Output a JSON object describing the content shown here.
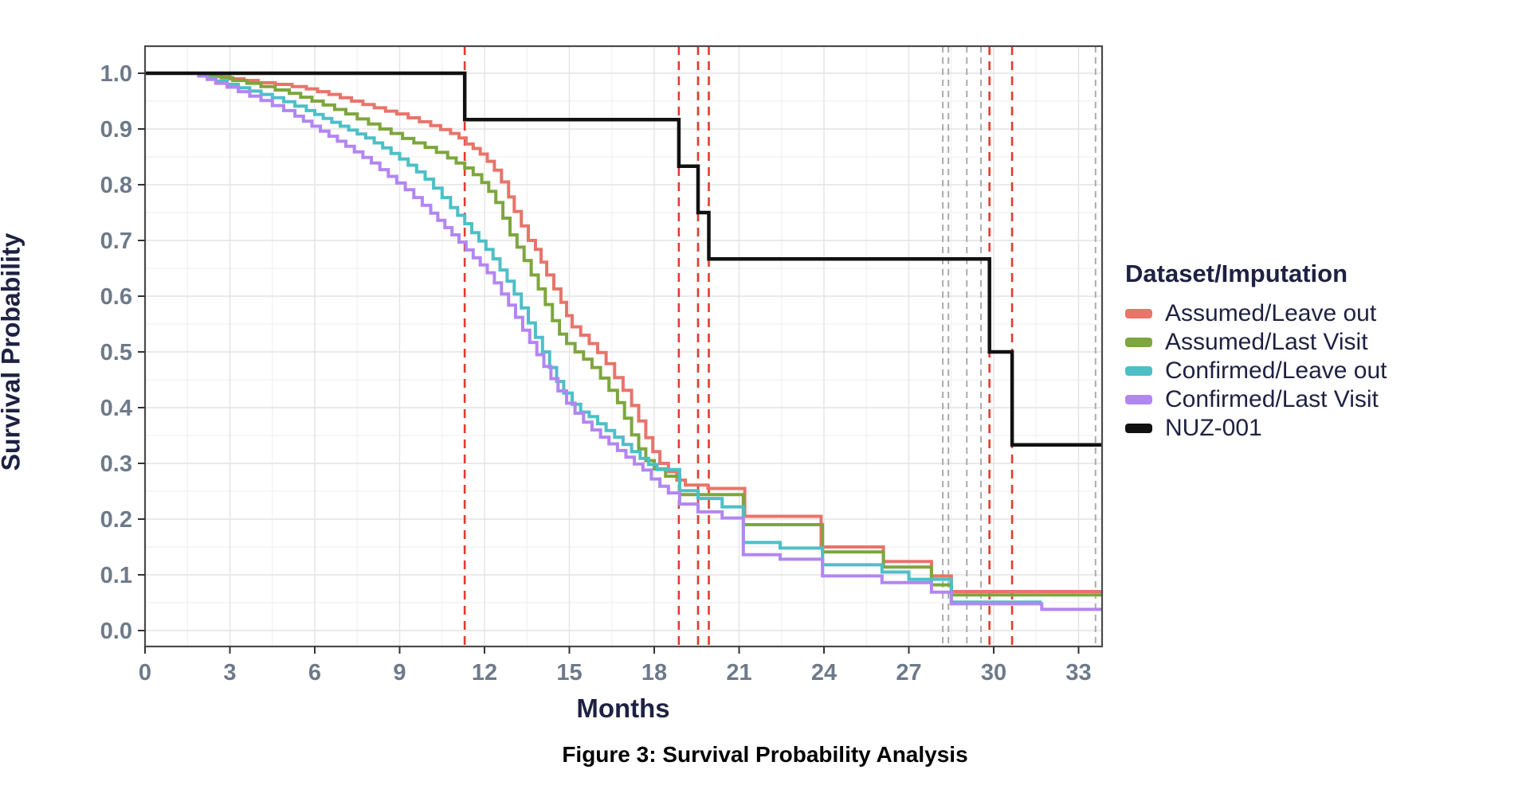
{
  "figure": {
    "caption": "Figure 3: Survival Probability Analysis"
  },
  "legend": {
    "title": "Dataset/Imputation",
    "entries": [
      {
        "label": "Assumed/Leave out",
        "color": "#e8746a"
      },
      {
        "label": "Assumed/Last Visit",
        "color": "#7da63d"
      },
      {
        "label": "Confirmed/Leave out",
        "color": "#4dbfc7"
      },
      {
        "label": "Confirmed/Last Visit",
        "color": "#b286f2"
      },
      {
        "label": "NUZ-001",
        "color": "#111111"
      }
    ]
  },
  "chart_data": {
    "type": "line",
    "subtype": "kaplan-meier-step",
    "title": "Figure 3: Survival Probability Analysis",
    "xlabel": "Months",
    "ylabel": "Survival Probability",
    "xlim": [
      0,
      33.88
    ],
    "ylim": [
      0.0,
      1.0
    ],
    "x_ticks": [
      0,
      3,
      6,
      9,
      12,
      15,
      18,
      21,
      24,
      27,
      30,
      33
    ],
    "y_ticks": [
      {
        "value": 1.0,
        "label": "1.0"
      },
      {
        "value": 0.9,
        "label": "0.9"
      },
      {
        "value": 0.8,
        "label": "0.8"
      },
      {
        "value": 0.7,
        "label": "0.7"
      },
      {
        "value": 0.6,
        "label": "0.6"
      },
      {
        "value": 0.5,
        "label": "0.5"
      },
      {
        "value": 0.4,
        "label": "0.4"
      },
      {
        "value": 0.3,
        "label": "0.3"
      },
      {
        "value": 0.2,
        "label": "0.2"
      },
      {
        "value": 0.1,
        "label": "0.1"
      },
      {
        "value": 0.0,
        "label": "0.0"
      }
    ],
    "grid": {
      "major_x_every": 3,
      "minor_x_every": 1.5,
      "major_y_every": 0.1,
      "minor_y_every": 0.05,
      "legend_position": "right"
    },
    "colors": {
      "grid_major": "#e3e3e3",
      "grid_minor": "#f1f1f1",
      "panel_border": "#4a4a4a",
      "tick_text": "#6e7a8a",
      "axis_title_text": "#1e2142",
      "event_line": "#e23b2e",
      "censor_line": "#ababab"
    },
    "event_lines": {
      "style": "dashed",
      "color": "#e23b2e",
      "months": [
        11.3,
        18.87,
        19.55,
        19.93,
        29.85,
        30.65
      ]
    },
    "censor_lines": {
      "style": "dashed",
      "color": "#ababab",
      "months": [
        28.2,
        28.4,
        29.05,
        29.55,
        33.6
      ]
    },
    "series": [
      {
        "name": "Assumed/Leave out",
        "color": "#e8746a",
        "width": 4,
        "start_value": 1.0,
        "end_x": 33.88,
        "steps": [
          [
            2.3,
            0.997
          ],
          [
            2.6,
            0.994
          ],
          [
            3.0,
            0.99
          ],
          [
            3.5,
            0.987
          ],
          [
            4.0,
            0.983
          ],
          [
            4.6,
            0.98
          ],
          [
            5.2,
            0.976
          ],
          [
            5.7,
            0.972
          ],
          [
            6.1,
            0.967
          ],
          [
            6.5,
            0.962
          ],
          [
            6.9,
            0.956
          ],
          [
            7.3,
            0.95
          ],
          [
            7.7,
            0.944
          ],
          [
            8.1,
            0.938
          ],
          [
            8.5,
            0.932
          ],
          [
            8.9,
            0.927
          ],
          [
            9.3,
            0.92
          ],
          [
            9.7,
            0.913
          ],
          [
            10.1,
            0.906
          ],
          [
            10.45,
            0.899
          ],
          [
            10.8,
            0.892
          ],
          [
            11.1,
            0.884
          ],
          [
            11.35,
            0.873
          ],
          [
            11.6,
            0.865
          ],
          [
            11.85,
            0.855
          ],
          [
            12.1,
            0.842
          ],
          [
            12.35,
            0.826
          ],
          [
            12.6,
            0.805
          ],
          [
            12.85,
            0.778
          ],
          [
            13.05,
            0.752
          ],
          [
            13.3,
            0.726
          ],
          [
            13.55,
            0.7
          ],
          [
            13.8,
            0.684
          ],
          [
            14.0,
            0.661
          ],
          [
            14.2,
            0.638
          ],
          [
            14.45,
            0.613
          ],
          [
            14.7,
            0.589
          ],
          [
            14.9,
            0.565
          ],
          [
            15.1,
            0.545
          ],
          [
            15.4,
            0.53
          ],
          [
            15.7,
            0.515
          ],
          [
            16.0,
            0.499
          ],
          [
            16.3,
            0.479
          ],
          [
            16.6,
            0.454
          ],
          [
            16.9,
            0.431
          ],
          [
            17.2,
            0.404
          ],
          [
            17.45,
            0.376
          ],
          [
            17.7,
            0.346
          ],
          [
            17.95,
            0.321
          ],
          [
            18.2,
            0.3
          ],
          [
            18.5,
            0.285
          ],
          [
            18.8,
            0.27
          ],
          [
            19.1,
            0.261
          ],
          [
            19.9,
            0.255
          ],
          [
            21.2,
            0.205
          ],
          [
            23.9,
            0.15
          ],
          [
            26.1,
            0.124
          ],
          [
            27.8,
            0.098
          ],
          [
            28.5,
            0.07
          ]
        ]
      },
      {
        "name": "Assumed/Last Visit",
        "color": "#7da63d",
        "width": 4,
        "start_value": 1.0,
        "end_x": 33.88,
        "steps": [
          [
            2.3,
            0.996
          ],
          [
            2.7,
            0.992
          ],
          [
            3.1,
            0.987
          ],
          [
            3.6,
            0.982
          ],
          [
            4.1,
            0.976
          ],
          [
            4.6,
            0.97
          ],
          [
            5.1,
            0.964
          ],
          [
            5.5,
            0.957
          ],
          [
            5.9,
            0.95
          ],
          [
            6.3,
            0.943
          ],
          [
            6.7,
            0.935
          ],
          [
            7.1,
            0.927
          ],
          [
            7.5,
            0.918
          ],
          [
            7.9,
            0.909
          ],
          [
            8.3,
            0.9
          ],
          [
            8.7,
            0.892
          ],
          [
            9.1,
            0.883
          ],
          [
            9.5,
            0.875
          ],
          [
            9.9,
            0.867
          ],
          [
            10.3,
            0.858
          ],
          [
            10.7,
            0.848
          ],
          [
            11.0,
            0.839
          ],
          [
            11.3,
            0.83
          ],
          [
            11.6,
            0.818
          ],
          [
            11.9,
            0.804
          ],
          [
            12.15,
            0.788
          ],
          [
            12.4,
            0.768
          ],
          [
            12.65,
            0.74
          ],
          [
            12.9,
            0.71
          ],
          [
            13.15,
            0.688
          ],
          [
            13.4,
            0.664
          ],
          [
            13.65,
            0.638
          ],
          [
            13.9,
            0.613
          ],
          [
            14.15,
            0.585
          ],
          [
            14.4,
            0.556
          ],
          [
            14.65,
            0.532
          ],
          [
            14.9,
            0.515
          ],
          [
            15.2,
            0.5
          ],
          [
            15.5,
            0.487
          ],
          [
            15.8,
            0.472
          ],
          [
            16.1,
            0.453
          ],
          [
            16.4,
            0.431
          ],
          [
            16.7,
            0.409
          ],
          [
            16.95,
            0.381
          ],
          [
            17.2,
            0.351
          ],
          [
            17.45,
            0.326
          ],
          [
            17.7,
            0.305
          ],
          [
            18.0,
            0.29
          ],
          [
            18.4,
            0.277
          ],
          [
            18.9,
            0.244
          ],
          [
            21.15,
            0.19
          ],
          [
            23.95,
            0.141
          ],
          [
            26.1,
            0.114
          ],
          [
            27.8,
            0.082
          ],
          [
            28.5,
            0.064
          ]
        ]
      },
      {
        "name": "Confirmed/Leave out",
        "color": "#4dbfc7",
        "width": 4,
        "start_value": 1.0,
        "end_x": 31.7,
        "steps": [
          [
            1.9,
            0.996
          ],
          [
            2.2,
            0.991
          ],
          [
            2.5,
            0.986
          ],
          [
            2.9,
            0.98
          ],
          [
            3.3,
            0.974
          ],
          [
            3.7,
            0.968
          ],
          [
            4.1,
            0.962
          ],
          [
            4.5,
            0.956
          ],
          [
            4.9,
            0.949
          ],
          [
            5.3,
            0.941
          ],
          [
            5.7,
            0.933
          ],
          [
            6.0,
            0.926
          ],
          [
            6.3,
            0.919
          ],
          [
            6.6,
            0.912
          ],
          [
            6.9,
            0.905
          ],
          [
            7.2,
            0.898
          ],
          [
            7.5,
            0.891
          ],
          [
            7.8,
            0.884
          ],
          [
            8.1,
            0.875
          ],
          [
            8.4,
            0.866
          ],
          [
            8.7,
            0.856
          ],
          [
            9.0,
            0.846
          ],
          [
            9.3,
            0.835
          ],
          [
            9.6,
            0.823
          ],
          [
            9.9,
            0.81
          ],
          [
            10.2,
            0.794
          ],
          [
            10.5,
            0.777
          ],
          [
            10.8,
            0.759
          ],
          [
            11.05,
            0.745
          ],
          [
            11.3,
            0.73
          ],
          [
            11.55,
            0.714
          ],
          [
            11.8,
            0.699
          ],
          [
            12.05,
            0.684
          ],
          [
            12.3,
            0.667
          ],
          [
            12.55,
            0.647
          ],
          [
            12.8,
            0.627
          ],
          [
            13.05,
            0.604
          ],
          [
            13.3,
            0.579
          ],
          [
            13.55,
            0.552
          ],
          [
            13.8,
            0.526
          ],
          [
            14.05,
            0.5
          ],
          [
            14.3,
            0.472
          ],
          [
            14.55,
            0.447
          ],
          [
            14.8,
            0.426
          ],
          [
            15.1,
            0.406
          ],
          [
            15.4,
            0.392
          ],
          [
            15.7,
            0.384
          ],
          [
            16.0,
            0.371
          ],
          [
            16.3,
            0.359
          ],
          [
            16.6,
            0.347
          ],
          [
            16.9,
            0.334
          ],
          [
            17.2,
            0.321
          ],
          [
            17.5,
            0.309
          ],
          [
            17.8,
            0.298
          ],
          [
            18.1,
            0.289
          ],
          [
            18.9,
            0.251
          ],
          [
            19.55,
            0.237
          ],
          [
            20.4,
            0.222
          ],
          [
            21.15,
            0.158
          ],
          [
            22.45,
            0.148
          ],
          [
            23.95,
            0.118
          ],
          [
            26.05,
            0.105
          ],
          [
            27.0,
            0.092
          ],
          [
            28.5,
            0.051
          ]
        ]
      },
      {
        "name": "Confirmed/Last Visit",
        "color": "#b286f2",
        "width": 4,
        "start_value": 1.0,
        "end_x": 33.88,
        "steps": [
          [
            1.9,
            0.995
          ],
          [
            2.2,
            0.989
          ],
          [
            2.5,
            0.982
          ],
          [
            2.9,
            0.975
          ],
          [
            3.3,
            0.967
          ],
          [
            3.7,
            0.959
          ],
          [
            4.1,
            0.951
          ],
          [
            4.5,
            0.942
          ],
          [
            4.9,
            0.933
          ],
          [
            5.3,
            0.923
          ],
          [
            5.6,
            0.914
          ],
          [
            5.9,
            0.905
          ],
          [
            6.2,
            0.896
          ],
          [
            6.5,
            0.887
          ],
          [
            6.8,
            0.878
          ],
          [
            7.1,
            0.869
          ],
          [
            7.4,
            0.859
          ],
          [
            7.7,
            0.849
          ],
          [
            8.0,
            0.839
          ],
          [
            8.3,
            0.827
          ],
          [
            8.6,
            0.815
          ],
          [
            8.9,
            0.803
          ],
          [
            9.2,
            0.791
          ],
          [
            9.5,
            0.777
          ],
          [
            9.8,
            0.763
          ],
          [
            10.1,
            0.749
          ],
          [
            10.35,
            0.736
          ],
          [
            10.6,
            0.723
          ],
          [
            10.85,
            0.71
          ],
          [
            11.1,
            0.697
          ],
          [
            11.35,
            0.683
          ],
          [
            11.6,
            0.669
          ],
          [
            11.85,
            0.656
          ],
          [
            12.1,
            0.642
          ],
          [
            12.35,
            0.624
          ],
          [
            12.6,
            0.604
          ],
          [
            12.85,
            0.584
          ],
          [
            13.1,
            0.562
          ],
          [
            13.35,
            0.539
          ],
          [
            13.6,
            0.517
          ],
          [
            13.85,
            0.495
          ],
          [
            14.1,
            0.474
          ],
          [
            14.35,
            0.452
          ],
          [
            14.6,
            0.43
          ],
          [
            14.9,
            0.408
          ],
          [
            15.2,
            0.39
          ],
          [
            15.5,
            0.374
          ],
          [
            15.8,
            0.36
          ],
          [
            16.1,
            0.347
          ],
          [
            16.4,
            0.335
          ],
          [
            16.7,
            0.323
          ],
          [
            17.0,
            0.311
          ],
          [
            17.3,
            0.299
          ],
          [
            17.6,
            0.288
          ],
          [
            17.9,
            0.272
          ],
          [
            18.2,
            0.259
          ],
          [
            18.5,
            0.247
          ],
          [
            18.9,
            0.227
          ],
          [
            19.55,
            0.213
          ],
          [
            20.4,
            0.202
          ],
          [
            21.15,
            0.136
          ],
          [
            22.45,
            0.128
          ],
          [
            23.95,
            0.098
          ],
          [
            26.05,
            0.086
          ],
          [
            27.8,
            0.069
          ],
          [
            28.5,
            0.048
          ],
          [
            31.7,
            0.038
          ]
        ]
      },
      {
        "name": "NUZ-001",
        "color": "#111111",
        "width": 4.5,
        "start_value": 1.0,
        "end_x": 33.88,
        "steps": [
          [
            11.3,
            0.9167
          ],
          [
            18.87,
            0.8333
          ],
          [
            19.55,
            0.75
          ],
          [
            19.93,
            0.6667
          ],
          [
            29.85,
            0.5
          ],
          [
            30.65,
            0.3333
          ]
        ]
      }
    ]
  }
}
